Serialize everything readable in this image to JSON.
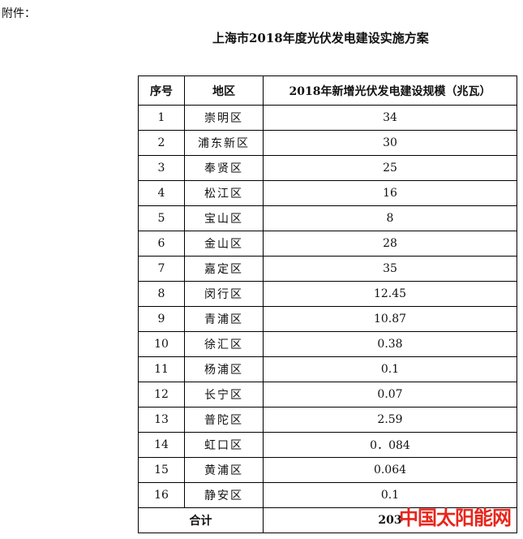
{
  "attachment_label": "附件：",
  "title": "上海市2018年度光伏发电建设实施方案",
  "table": {
    "headers": [
      "序号",
      "地区",
      "2018年新增光伏发电建设规模（兆瓦）"
    ],
    "rows": [
      [
        "1",
        "崇明区",
        "34"
      ],
      [
        "2",
        "浦东新区",
        "30"
      ],
      [
        "3",
        "奉贤区",
        "25"
      ],
      [
        "4",
        "松江区",
        "16"
      ],
      [
        "5",
        "宝山区",
        "8"
      ],
      [
        "6",
        "金山区",
        "28"
      ],
      [
        "7",
        "嘉定区",
        "35"
      ],
      [
        "8",
        "闵行区",
        "12.45"
      ],
      [
        "9",
        "青浦区",
        "10.87"
      ],
      [
        "10",
        "徐汇区",
        "0.38"
      ],
      [
        "11",
        "杨浦区",
        "0.1"
      ],
      [
        "12",
        "长宁区",
        "0.07"
      ],
      [
        "13",
        "普陀区",
        "2.59"
      ],
      [
        "14",
        "虹口区",
        "0．084"
      ],
      [
        "15",
        "黄浦区",
        "0.064"
      ],
      [
        "16",
        "静安区",
        "0.1"
      ]
    ],
    "total_label": "合计",
    "total_value": "203"
  },
  "watermark": "中国太阳能网",
  "colors": {
    "watermark": "#e8251b"
  }
}
